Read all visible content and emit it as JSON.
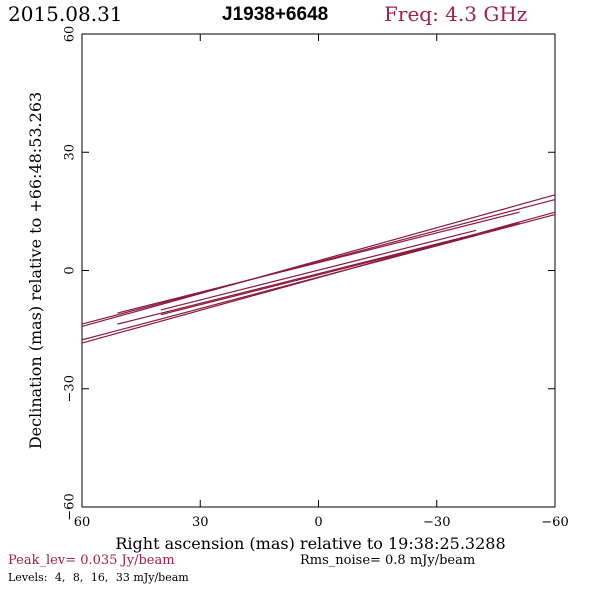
{
  "header": {
    "date": "2015.08.31",
    "source": "J1938+6648",
    "frequency": "Freq: 4.3 GHz"
  },
  "footer": {
    "peak_label": "Peak_lev=  0.035 Jy/beam",
    "rms_label": "Rms_noise=  0.8 mJy/beam",
    "levels_title": "Levels:",
    "levels": [
      "4,",
      "8,",
      "16,",
      "33 mJy/beam"
    ]
  },
  "colors": {
    "accent": "#a0204e",
    "contour": "#8b1a3c",
    "axis": "#000000"
  },
  "chart_data": {
    "type": "contour",
    "xlabel": "Right ascension (mas) relative to 19:38:25.3288",
    "ylabel": "Declination (mas) relative to +66:48:53.263",
    "xlim": [
      60,
      -60
    ],
    "ylim": [
      -60,
      60
    ],
    "x_ticks": [
      60,
      30,
      0,
      -30,
      -60
    ],
    "y_ticks": [
      -60,
      -30,
      0,
      30,
      60
    ],
    "x_tick_labels": [
      "60",
      "30",
      "0",
      "−30",
      "−60"
    ],
    "y_tick_labels": [
      "−60",
      "−30",
      "0",
      "30",
      "60"
    ],
    "contour_levels_mJy": [
      4,
      8,
      16,
      33
    ],
    "contours": [
      {
        "level": 4,
        "x": [
          60,
          -60
        ],
        "y_upper": [
          -14.2,
          19.2
        ],
        "y_lower": [
          -18.4,
          14.8
        ]
      },
      {
        "level": 8,
        "x": [
          60,
          -60
        ],
        "y_upper": [
          -13.6,
          18.0
        ],
        "y_lower": [
          -17.6,
          14.2
        ]
      },
      {
        "level": 16,
        "x": [
          51,
          -51
        ],
        "y_upper": [
          -10.8,
          14.8
        ],
        "y_lower": [
          -13.6,
          12.0
        ]
      },
      {
        "level": 33,
        "x": [
          40,
          -40
        ],
        "y_upper": [
          -10.0,
          10.2
        ],
        "y_lower": [
          -11.2,
          9.0
        ]
      }
    ]
  }
}
